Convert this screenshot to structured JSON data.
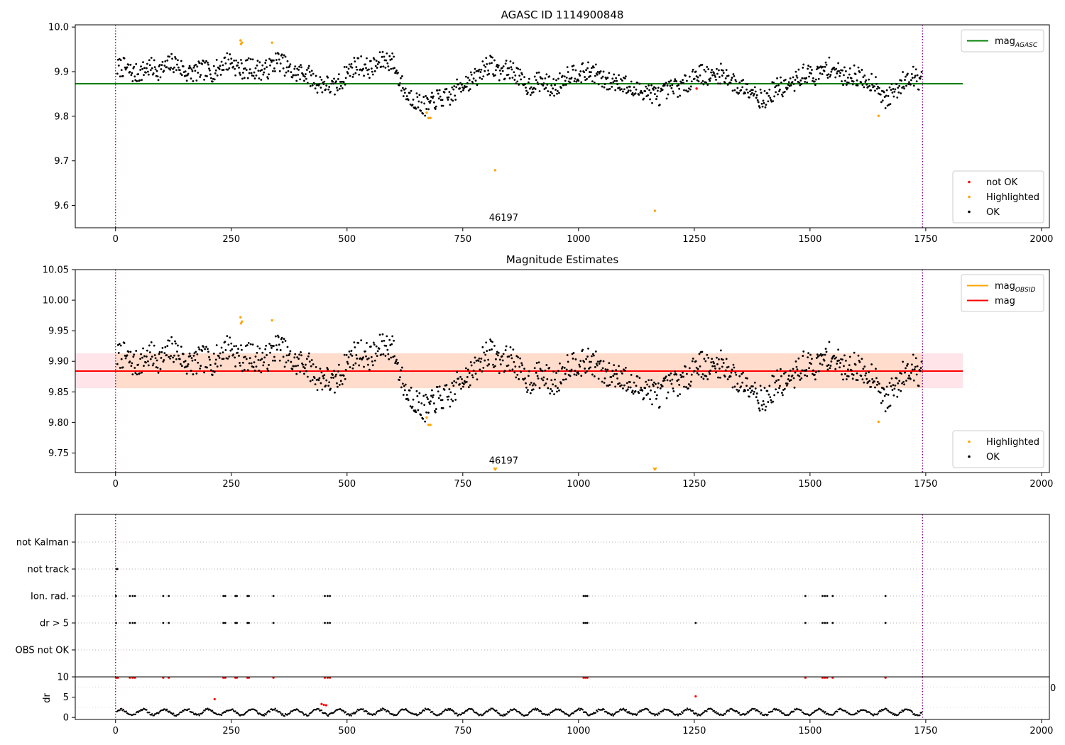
{
  "colors": {
    "ok": "#000000",
    "not_ok": "#ff0000",
    "highlighted": "#ffa500",
    "agasc_line": "#008000",
    "mag_line": "#ff0000",
    "obsid_line": "#ffa500",
    "band_orange": "#ffdccc",
    "band_pink": "#ffe4ea",
    "limits": "#800080"
  },
  "chart_data": [
    {
      "id": "agasc",
      "type": "scatter",
      "title": "AGASC ID 1114900848",
      "xlim": [
        -87,
        2017
      ],
      "ylim": [
        9.55,
        10.005
      ],
      "xticks": [
        0,
        250,
        500,
        750,
        1000,
        1250,
        1500,
        1750,
        2000
      ],
      "xtick_labels": [
        "0",
        "250",
        "500",
        "750",
        "1000",
        "1250",
        "1500",
        "1750",
        "2000"
      ],
      "yticks": [
        9.6,
        9.7,
        9.8,
        9.9,
        10.0
      ],
      "ytick_labels": [
        "9.6",
        "9.7",
        "9.8",
        "9.9",
        "10.0"
      ],
      "vlines": [
        0,
        1743
      ],
      "hline": {
        "y": 9.873,
        "x": [
          -87,
          1830
        ]
      },
      "obsid_label": {
        "text": "46197",
        "x": 870,
        "y": 9.572
      },
      "outliers": {
        "highlighted": [
          [
            270,
            9.97
          ],
          [
            271,
            9.962
          ],
          [
            273,
            9.965
          ],
          [
            338,
            9.965
          ],
          [
            672,
            9.808
          ],
          [
            676,
            9.796
          ],
          [
            680,
            9.796
          ],
          [
            820,
            9.679
          ],
          [
            1165,
            9.588
          ],
          [
            1648,
            9.801
          ]
        ],
        "not_ok": [
          [
            1255,
            9.862
          ]
        ]
      },
      "legend_top": {
        "position": "upper right",
        "entries": [
          {
            "label": "mag",
            "subscript": "AGASC",
            "kind": "line",
            "color": "#008000"
          }
        ]
      },
      "legend_bottom": {
        "position": "lower right",
        "entries": [
          {
            "label": "not OK",
            "kind": "point",
            "color": "#ff0000"
          },
          {
            "label": "Highlighted",
            "kind": "point",
            "color": "#ffa500"
          },
          {
            "label": "OK",
            "kind": "point",
            "color": "#000000"
          }
        ]
      }
    },
    {
      "id": "estimates",
      "type": "scatter",
      "title": "Magnitude Estimates",
      "xlim": [
        -87,
        2017
      ],
      "ylim": [
        9.718,
        10.05
      ],
      "xticks": [
        0,
        250,
        500,
        750,
        1000,
        1250,
        1500,
        1750,
        2000
      ],
      "xtick_labels": [
        "0",
        "250",
        "500",
        "750",
        "1000",
        "1250",
        "1500",
        "1750",
        "2000"
      ],
      "yticks": [
        9.75,
        9.8,
        9.85,
        9.9,
        9.95,
        10.0,
        10.05
      ],
      "ytick_labels": [
        "9.75",
        "9.80",
        "9.85",
        "9.90",
        "9.95",
        "10.00",
        "10.05"
      ],
      "vlines": [
        0,
        1743
      ],
      "hline": {
        "y": 9.884,
        "x": [
          -87,
          1830
        ]
      },
      "obsid_line": {
        "y": 9.884,
        "x": [
          0,
          1743
        ]
      },
      "band": {
        "y": [
          9.856,
          9.913
        ],
        "inner_x": [
          0,
          1743
        ],
        "outer_x": [
          -87,
          1830
        ]
      },
      "obsid_label": {
        "text": "46197",
        "x": 870,
        "y": 9.728
      },
      "below_markers": [
        820,
        1165
      ],
      "outliers": {
        "highlighted": [
          [
            270,
            9.972
          ],
          [
            271,
            9.962
          ],
          [
            273,
            9.965
          ],
          [
            338,
            9.967
          ],
          [
            672,
            9.808
          ],
          [
            676,
            9.796
          ],
          [
            680,
            9.796
          ],
          [
            1648,
            9.801
          ]
        ]
      },
      "legend_top": {
        "position": "upper right",
        "entries": [
          {
            "label": "mag",
            "subscript": "OBSID",
            "kind": "line",
            "color": "#ffa500"
          },
          {
            "label": "mag",
            "kind": "line",
            "color": "#ff0000"
          }
        ]
      },
      "legend_bottom": {
        "position": "lower right",
        "entries": [
          {
            "label": "Highlighted",
            "kind": "point",
            "color": "#ffa500"
          },
          {
            "label": "OK",
            "kind": "point",
            "color": "#000000"
          }
        ]
      }
    },
    {
      "id": "flags",
      "type": "scatter",
      "categories": [
        "OBS not OK",
        "dr > 5",
        "Ion. rad.",
        "not track",
        "not Kalman"
      ],
      "xlim": [
        -87,
        2017
      ],
      "vlines": [
        0,
        1743
      ],
      "grid": "horizontal dotted",
      "flag_points": {
        "not track": [
          [
            2,
            1
          ],
          [
            4,
            1
          ]
        ],
        "Ion. rad.": [
          [
            1,
            1
          ],
          [
            31,
            1
          ],
          [
            37,
            1
          ],
          [
            42,
            1
          ],
          [
            103,
            1
          ],
          [
            115,
            1
          ],
          [
            233,
            1
          ],
          [
            237,
            1
          ],
          [
            259,
            1
          ],
          [
            262,
            1
          ],
          [
            285,
            1
          ],
          [
            288,
            1
          ],
          [
            341,
            1
          ],
          [
            452,
            1
          ],
          [
            458,
            1
          ],
          [
            463,
            1
          ],
          [
            1011,
            1
          ],
          [
            1015,
            1
          ],
          [
            1019,
            1
          ],
          [
            1490,
            1
          ],
          [
            1527,
            1
          ],
          [
            1532,
            1
          ],
          [
            1537,
            1
          ],
          [
            1549,
            1
          ],
          [
            1663,
            1
          ]
        ],
        "dr > 5": [
          [
            1,
            1
          ],
          [
            31,
            1
          ],
          [
            37,
            1
          ],
          [
            42,
            1
          ],
          [
            103,
            1
          ],
          [
            115,
            1
          ],
          [
            233,
            1
          ],
          [
            237,
            1
          ],
          [
            259,
            1
          ],
          [
            262,
            1
          ],
          [
            285,
            1
          ],
          [
            288,
            1
          ],
          [
            341,
            1
          ],
          [
            452,
            1
          ],
          [
            458,
            1
          ],
          [
            463,
            1
          ],
          [
            1011,
            1
          ],
          [
            1015,
            1
          ],
          [
            1019,
            1
          ],
          [
            1253,
            1
          ],
          [
            1490,
            1
          ],
          [
            1527,
            1
          ],
          [
            1532,
            1
          ],
          [
            1537,
            1
          ],
          [
            1549,
            1
          ],
          [
            1663,
            1
          ]
        ]
      }
    },
    {
      "id": "dr",
      "type": "scatter",
      "xlim": [
        -87,
        2017
      ],
      "ylim": [
        -0.5,
        10
      ],
      "ylabel": "dr",
      "xticks": [
        0,
        250,
        500,
        750,
        1000,
        1250,
        1500,
        1750,
        2000
      ],
      "xtick_labels": [
        "0",
        "250",
        "500",
        "750",
        "1000",
        "1250",
        "1500",
        "1750",
        "2000"
      ],
      "yticks": [
        0,
        5,
        10
      ],
      "ytick_labels": [
        "0",
        "5",
        "10"
      ],
      "vlines": [
        0,
        1743
      ],
      "clip_text": "0",
      "red_points": [
        [
          1,
          9.8
        ],
        [
          3,
          9.8
        ],
        [
          5,
          9.8
        ],
        [
          31,
          9.8
        ],
        [
          37,
          9.8
        ],
        [
          42,
          9.8
        ],
        [
          103,
          9.8
        ],
        [
          115,
          9.8
        ],
        [
          233,
          9.8
        ],
        [
          237,
          9.8
        ],
        [
          259,
          9.8
        ],
        [
          262,
          9.8
        ],
        [
          285,
          9.8
        ],
        [
          288,
          9.8
        ],
        [
          341,
          9.8
        ],
        [
          452,
          9.8
        ],
        [
          458,
          9.8
        ],
        [
          463,
          9.8
        ],
        [
          1011,
          9.8
        ],
        [
          1015,
          9.8
        ],
        [
          1019,
          9.8
        ],
        [
          1490,
          9.8
        ],
        [
          1527,
          9.8
        ],
        [
          1532,
          9.8
        ],
        [
          1537,
          9.8
        ],
        [
          1549,
          9.8
        ],
        [
          1663,
          9.8
        ],
        [
          214,
          4.5
        ],
        [
          445,
          3.3
        ],
        [
          450,
          3.1
        ],
        [
          455,
          3.0
        ],
        [
          1253,
          5.2
        ]
      ]
    }
  ]
}
